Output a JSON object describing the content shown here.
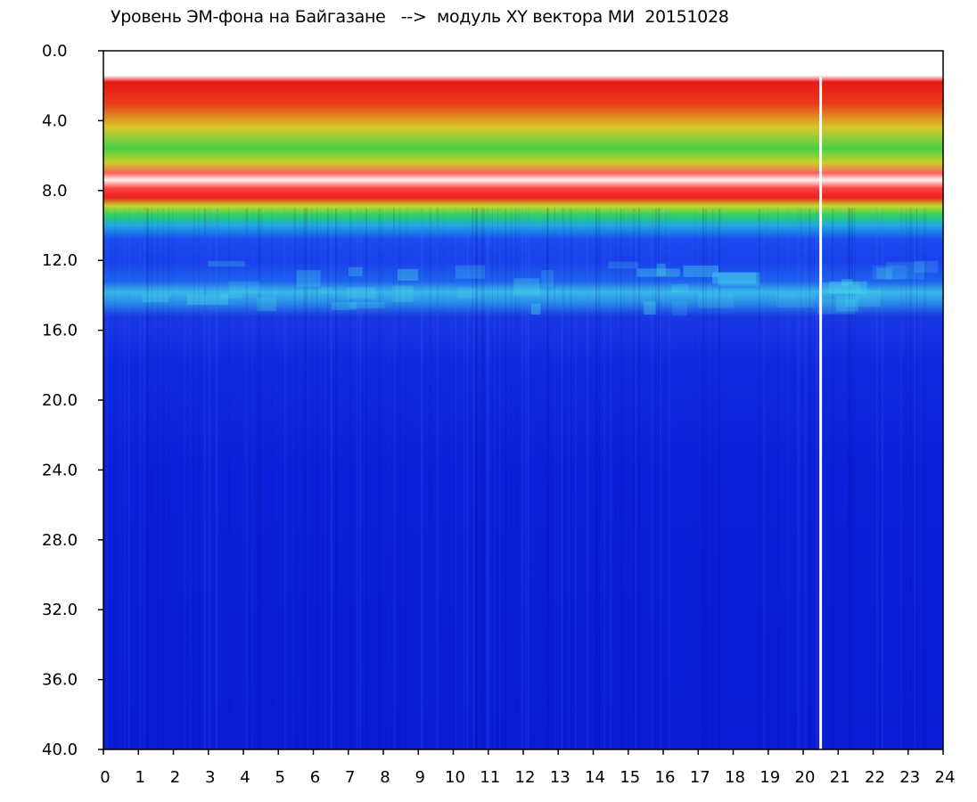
{
  "chart_data": {
    "type": "heatmap",
    "title": "Уровень ЭМ-фона на Байгазане   -->  модуль XY вектора МИ  20151028",
    "xlabel": "",
    "ylabel": "",
    "x_ticks": [
      "0",
      "1",
      "2",
      "3",
      "4",
      "5",
      "6",
      "7",
      "8",
      "9",
      "10",
      "11",
      "12",
      "13",
      "14",
      "15",
      "16",
      "17",
      "18",
      "19",
      "20",
      "21",
      "22",
      "23",
      "24"
    ],
    "y_ticks": [
      "0.0",
      "4.0",
      "8.0",
      "12.0",
      "16.0",
      "20.0",
      "24.0",
      "28.0",
      "32.0",
      "36.0",
      "40.0"
    ],
    "xlim": [
      0,
      24
    ],
    "ylim": [
      0,
      40
    ],
    "y_inverted": true,
    "colors": {
      "background_low": "#0a1bd6",
      "low": "#1a3af0",
      "mid_cyan": "#2ecbe0",
      "green": "#37d63a",
      "yellow": "#e6e62a",
      "high_red": "#e81818",
      "saturated": "#ffffff"
    },
    "bands": [
      {
        "description": "top noise edge",
        "y_from": 1.5,
        "y_to": 4.0,
        "level": "red"
      },
      {
        "description": "strong band",
        "y_from": 3.0,
        "y_to": 8.0,
        "level": "yellow-green"
      },
      {
        "description": "saturated strip",
        "y_from": 6.5,
        "y_to": 8.0,
        "level": "white"
      },
      {
        "description": "transition",
        "y_from": 8.0,
        "y_to": 9.5,
        "level": "green-cyan"
      },
      {
        "description": "secondary band",
        "y_from": 12.5,
        "y_to": 15.0,
        "level": "cyan"
      }
    ],
    "gaps_at_hours": [
      20.5
    ]
  }
}
